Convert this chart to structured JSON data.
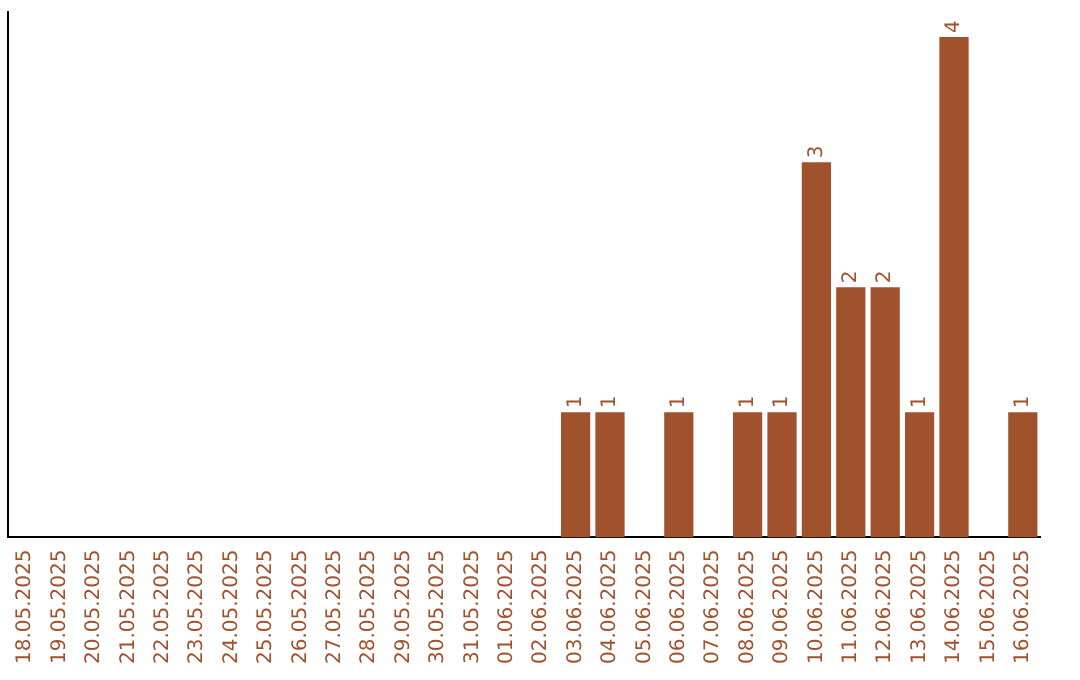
{
  "chart_data": {
    "type": "bar",
    "categories": [
      "18.05.2025",
      "19.05.2025",
      "20.05.2025",
      "21.05.2025",
      "22.05.2025",
      "23.05.2025",
      "24.05.2025",
      "25.05.2025",
      "26.05.2025",
      "27.05.2025",
      "28.05.2025",
      "29.05.2025",
      "30.05.2025",
      "31.05.2025",
      "01.06.2025",
      "02.06.2025",
      "03.06.2025",
      "04.06.2025",
      "05.06.2025",
      "06.06.2025",
      "07.06.2025",
      "08.06.2025",
      "09.06.2025",
      "10.06.2025",
      "11.06.2025",
      "12.06.2025",
      "13.06.2025",
      "14.06.2025",
      "15.06.2025",
      "16.06.2025"
    ],
    "values": [
      null,
      null,
      null,
      null,
      null,
      null,
      null,
      null,
      null,
      null,
      null,
      null,
      null,
      null,
      null,
      null,
      1,
      1,
      null,
      1,
      null,
      1,
      1,
      3,
      2,
      2,
      1,
      4,
      null,
      1
    ],
    "data_labels": true,
    "color": "#a0522d",
    "ylim": [
      0,
      4.2
    ],
    "tick_labels": "x",
    "grid": false,
    "legend": false
  }
}
